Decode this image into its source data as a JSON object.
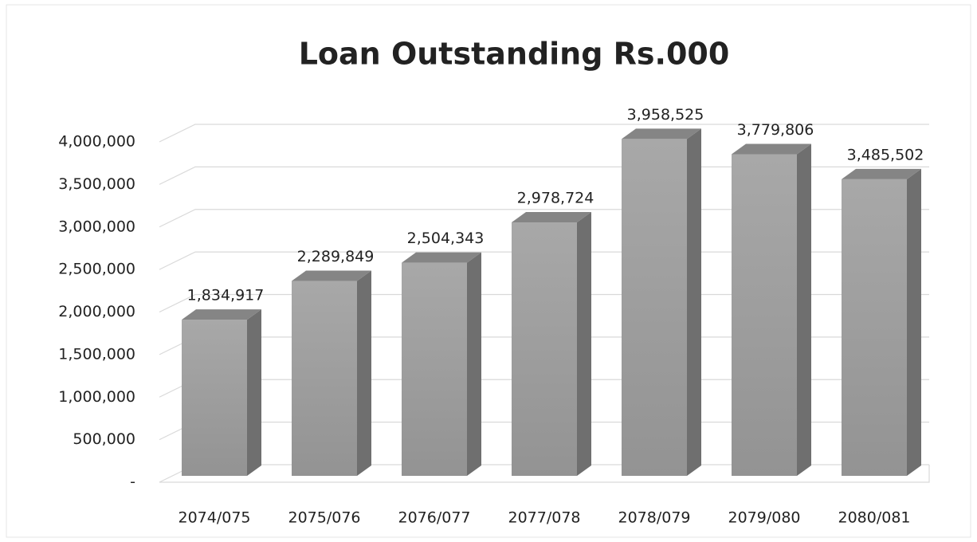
{
  "chart_data": {
    "type": "bar3d",
    "title": "Loan Outstanding Rs.000",
    "categories": [
      "2074/075",
      "2075/076",
      "2076/077",
      "2077/078",
      "2078/079",
      "2079/080",
      "2080/081"
    ],
    "values": [
      1834917,
      2289849,
      2504343,
      2978724,
      3958525,
      3779806,
      3485502
    ],
    "value_labels": [
      "1,834,917",
      "2,289,849",
      "2,504,343",
      "2,978,724",
      "3,958,525",
      "3,779,806",
      "3,485,502"
    ],
    "color": "#9e9e9e",
    "ylim": [
      0,
      4000000
    ],
    "yticks": [
      {
        "value": 0,
        "label": "-"
      },
      {
        "value": 500000,
        "label": "500,000"
      },
      {
        "value": 1000000,
        "label": "1,000,000"
      },
      {
        "value": 1500000,
        "label": "1,500,000"
      },
      {
        "value": 2000000,
        "label": "2,000,000"
      },
      {
        "value": 2500000,
        "label": "2,500,000"
      },
      {
        "value": 3000000,
        "label": "3,000,000"
      },
      {
        "value": 3500000,
        "label": "3,500,000"
      },
      {
        "value": 4000000,
        "label": "4,000,000"
      }
    ],
    "grid": true
  }
}
